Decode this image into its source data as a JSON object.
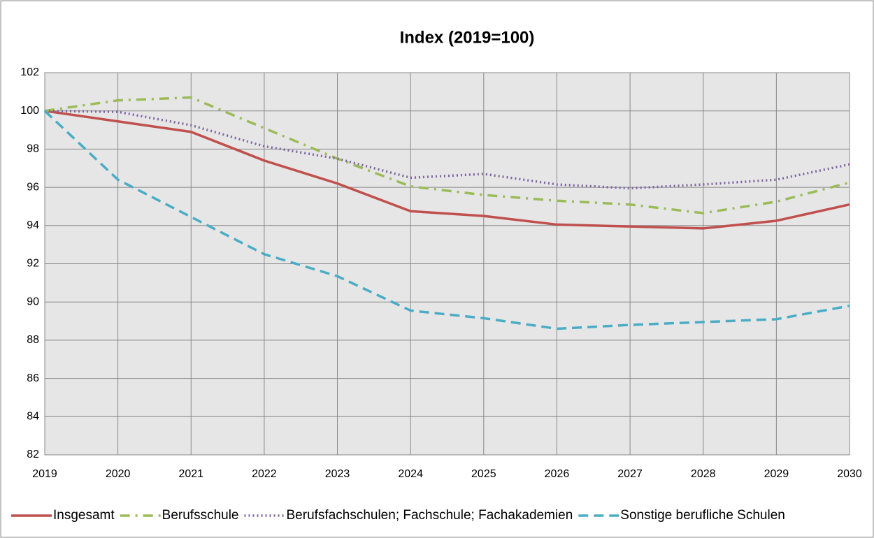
{
  "chart_data": {
    "type": "line",
    "title": "Index (2019=100)",
    "x": [
      2019,
      2020,
      2021,
      2022,
      2023,
      2024,
      2025,
      2026,
      2027,
      2028,
      2029,
      2030
    ],
    "series": [
      {
        "name": "Insgesamt",
        "color": "#c0504d",
        "dash": "solid",
        "values": [
          100,
          99.45,
          98.9,
          97.4,
          96.2,
          94.75,
          94.5,
          94.05,
          93.95,
          93.85,
          94.25,
          95.1
        ]
      },
      {
        "name": "Berufsschule",
        "color": "#9bbb59",
        "dash": "dashdot",
        "values": [
          100,
          100.55,
          100.7,
          99.1,
          97.5,
          96.05,
          95.6,
          95.3,
          95.1,
          94.65,
          95.25,
          96.25
        ]
      },
      {
        "name": "Berufsfachschulen; Fachschule; Fachakademien",
        "color": "#8064a2",
        "dash": "dotted",
        "values": [
          100,
          99.95,
          99.25,
          98.15,
          97.5,
          96.5,
          96.7,
          96.15,
          95.95,
          96.15,
          96.4,
          97.2
        ]
      },
      {
        "name": "Sonstige berufliche Schulen",
        "color": "#4bacc6",
        "dash": "dashed",
        "values": [
          100,
          96.4,
          94.45,
          92.5,
          91.35,
          89.55,
          89.15,
          88.6,
          88.8,
          88.95,
          89.1,
          89.8
        ]
      }
    ],
    "xlim": [
      2019,
      2030
    ],
    "xticks": [
      2019,
      2020,
      2021,
      2022,
      2023,
      2024,
      2025,
      2026,
      2027,
      2028,
      2029,
      2030
    ],
    "ylim": [
      82,
      102
    ],
    "yticks": [
      82,
      84,
      86,
      88,
      90,
      92,
      94,
      96,
      98,
      100,
      102
    ],
    "grid": true,
    "legend": "bottom"
  }
}
